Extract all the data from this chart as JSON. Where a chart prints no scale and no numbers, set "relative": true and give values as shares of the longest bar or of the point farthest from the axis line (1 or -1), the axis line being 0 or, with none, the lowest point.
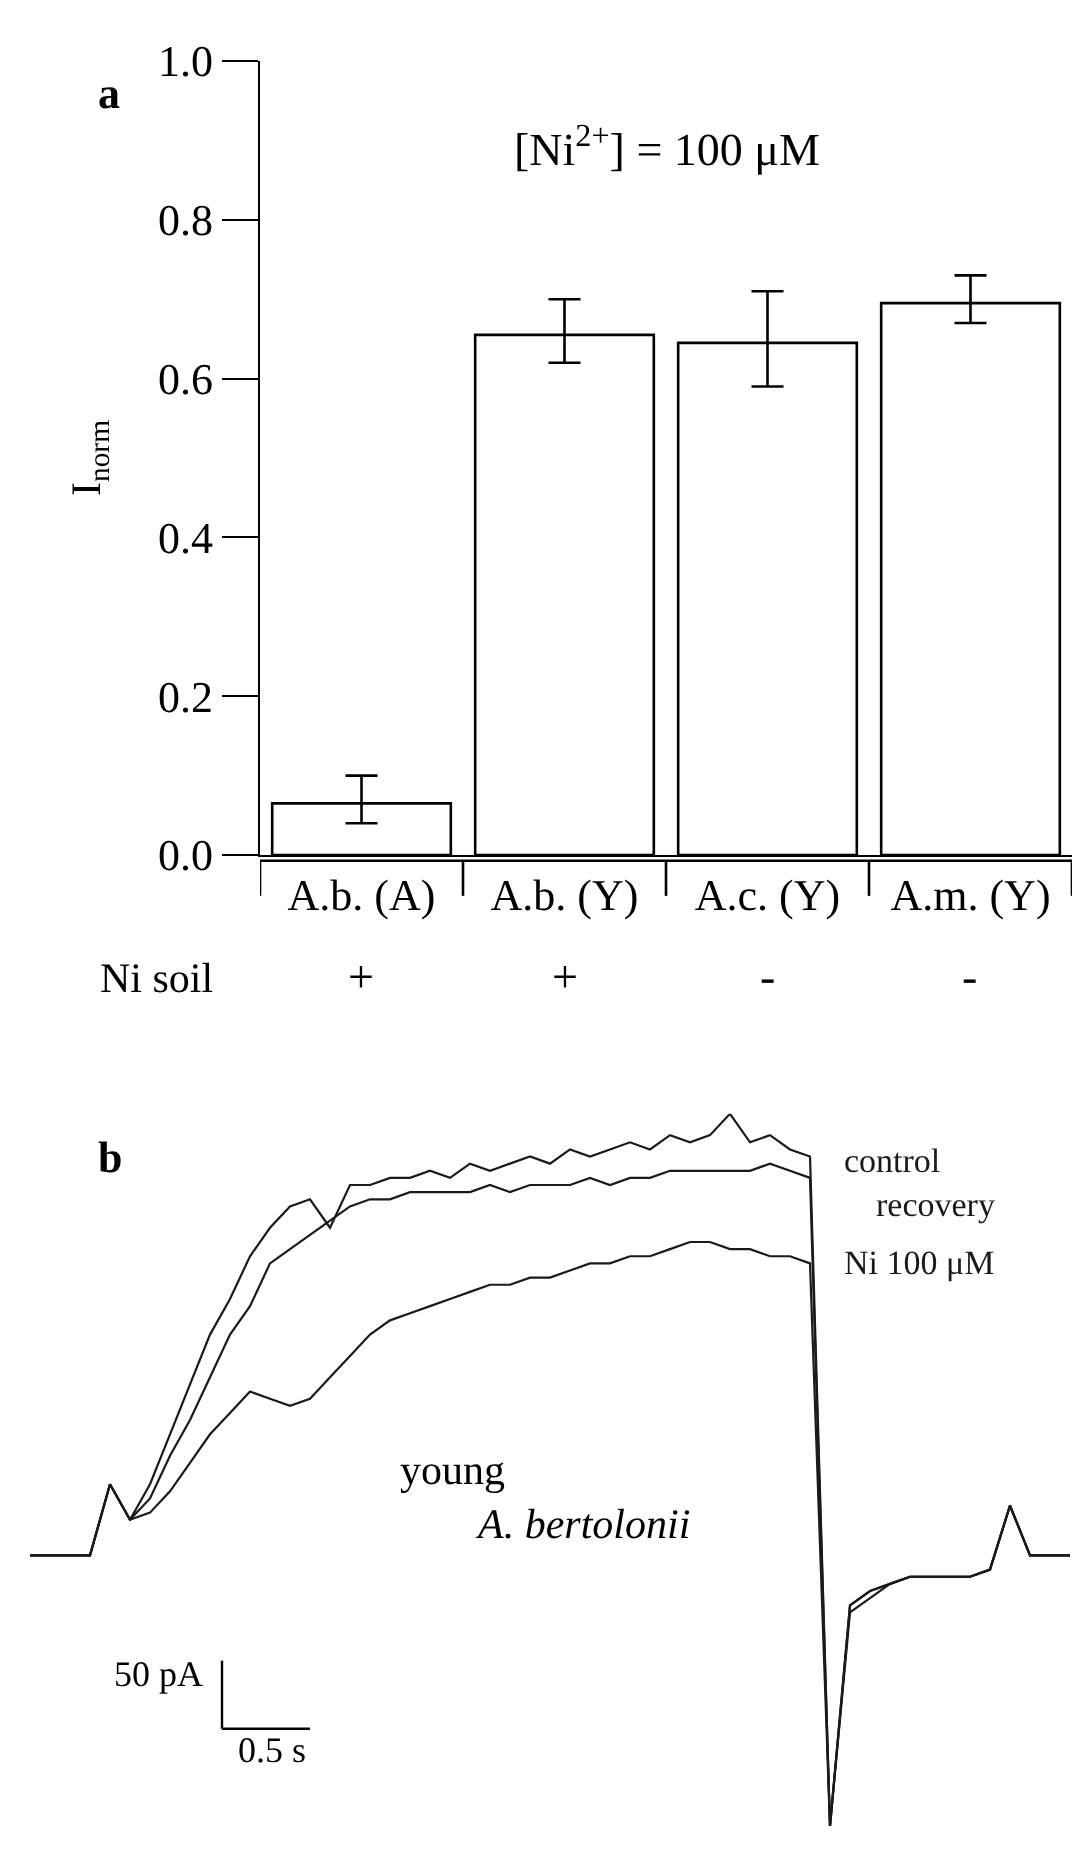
{
  "chart_data": [
    {
      "type": "bar",
      "title": "a",
      "ylabel": "I$_{norm}$",
      "xlabel": "Ni soil",
      "categories": [
        "A.b. (A)",
        "A.b. (Y)",
        "A.c. (Y)",
        "A.m. (Y)"
      ],
      "values": [
        0.065,
        0.655,
        0.645,
        0.695
      ],
      "color": "#ffffff",
      "errors": [
        [
          0.04,
          0.1
        ],
        [
          0.62,
          0.7
        ],
        [
          0.59,
          0.71
        ],
        [
          0.67,
          0.73
        ]
      ],
      "ylim": [
        0,
        1.0
      ],
      "yticks": [
        {
          "value": 0,
          "label": "0.0"
        },
        0.2,
        0.4,
        0.6,
        0.8,
        {
          "value": 1,
          "label": "1.0"
        }
      ],
      "annotations": [
        "[Ni$^{2+}$] = 100 μM",
        "+",
        "+",
        "-",
        "-"
      ]
    },
    {
      "type": "line",
      "title": "b",
      "relative": true,
      "tick_labels": false,
      "categories": [
        null,
        null,
        null,
        null,
        null,
        null,
        null,
        null,
        null,
        null,
        null,
        null,
        null,
        null,
        null,
        null,
        null,
        null,
        null,
        null,
        null,
        null,
        null,
        null,
        null,
        null,
        null,
        null,
        null,
        null,
        null,
        null,
        null,
        null,
        null,
        null,
        null,
        null,
        null,
        null,
        null,
        null,
        null,
        null,
        null,
        null,
        null,
        null,
        null,
        null,
        null,
        null,
        null
      ],
      "series": [
        {
          "name": "control",
          "color": "#1a1a1a",
          "values": [
            0.38,
            0.38,
            0.38,
            0.38,
            0.48,
            0.43,
            0.48,
            0.55,
            0.62,
            0.69,
            0.74,
            0.8,
            0.84,
            0.87,
            0.88,
            0.84,
            0.9,
            0.9,
            0.91,
            0.91,
            0.92,
            0.91,
            0.93,
            0.92,
            0.93,
            0.94,
            0.93,
            0.95,
            0.94,
            0.95,
            0.96,
            0.95,
            0.97,
            0.96,
            0.97,
            1.0,
            0.96,
            0.97,
            0.95,
            0.94,
            0,
            0.31,
            0.33,
            0.34,
            0.35,
            0.35,
            0.35,
            0.35,
            0.36,
            0.45,
            0.38,
            0.38,
            0.38
          ]
        },
        {
          "name": "recovery",
          "color": "#1a1a1a",
          "values": [
            0.38,
            0.38,
            0.38,
            0.38,
            0.48,
            0.43,
            0.46,
            0.52,
            0.57,
            0.63,
            0.69,
            0.73,
            0.79,
            0.81,
            0.83,
            0.85,
            0.87,
            0.88,
            0.88,
            0.89,
            0.89,
            0.89,
            0.89,
            0.9,
            0.89,
            0.9,
            0.9,
            0.9,
            0.91,
            0.9,
            0.91,
            0.91,
            0.92,
            0.92,
            0.92,
            0.92,
            0.92,
            0.93,
            0.92,
            0.91,
            0,
            0.31,
            0.33,
            0.34,
            0.35,
            0.35,
            0.35,
            0.35,
            0.36,
            0.45,
            0.38,
            0.38,
            0.38
          ]
        },
        {
          "name": "Ni 100 μM",
          "color": "#1a1a1a",
          "values": [
            0.38,
            0.38,
            0.38,
            0.38,
            0.48,
            0.43,
            0.44,
            0.47,
            0.51,
            0.55,
            0.58,
            0.61,
            0.6,
            0.59,
            0.6,
            0.63,
            0.66,
            0.69,
            0.71,
            0.72,
            0.73,
            0.74,
            0.75,
            0.76,
            0.76,
            0.77,
            0.77,
            0.78,
            0.79,
            0.79,
            0.8,
            0.8,
            0.81,
            0.82,
            0.82,
            0.81,
            0.81,
            0.8,
            0.8,
            0.79,
            0,
            0.3,
            0.32,
            0.34,
            0.35,
            0.35,
            0.35,
            0.35,
            0.36,
            0.45,
            0.38,
            0.38,
            0.38
          ]
        }
      ],
      "annotations": [
        "young",
        "A. bertolonii",
        "50 pA",
        "0.5 s"
      ]
    }
  ]
}
